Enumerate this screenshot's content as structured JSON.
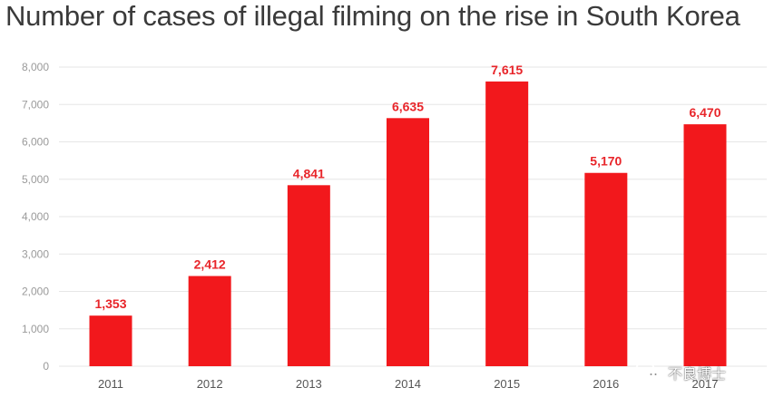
{
  "chart_data": {
    "type": "bar",
    "title": "Number of cases of illegal filming on the rise in South Korea",
    "categories": [
      "2011",
      "2012",
      "2013",
      "2014",
      "2015",
      "2016",
      "2017"
    ],
    "values": [
      1353,
      2412,
      4841,
      6635,
      7615,
      5170,
      6470
    ],
    "data_labels": [
      "1,353",
      "2,412",
      "4,841",
      "6,635",
      "7,615",
      "5,170",
      "6,470"
    ],
    "ylim": [
      0,
      8000
    ],
    "yticks": [
      0,
      1000,
      2000,
      3000,
      4000,
      5000,
      6000,
      7000,
      8000
    ],
    "ytick_labels": [
      "0",
      "1,000",
      "2,000",
      "3,000",
      "4,000",
      "5,000",
      "6,000",
      "7,000",
      "8,000"
    ],
    "xlabel": "",
    "ylabel": "",
    "grid": true,
    "bar_color": "#f2181c",
    "label_color": "#e8252a"
  },
  "watermark": {
    "text": "不良博士",
    "icon": "wechat-icon"
  }
}
